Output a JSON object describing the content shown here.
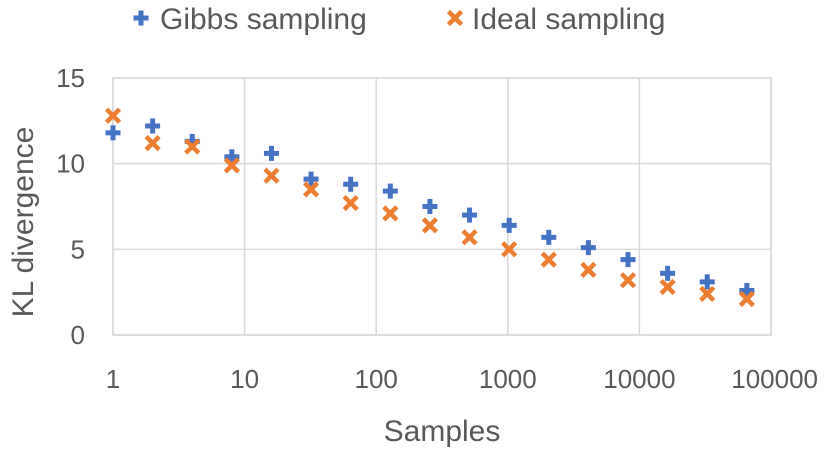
{
  "chart_data": {
    "type": "scatter",
    "xscale": "log",
    "xlim": [
      1,
      100000
    ],
    "ylim": [
      0,
      15
    ],
    "grid": true,
    "legend_position": "top",
    "xlabel": "Samples",
    "ylabel": "KL divergence",
    "xticks": [
      "1",
      "10",
      "100",
      "1000",
      "10000",
      "100000"
    ],
    "yticks": [
      "0",
      "5",
      "10",
      "15"
    ],
    "series": [
      {
        "name": "Gibbs sampling",
        "marker": "plus",
        "color": "#4472C4",
        "x": [
          1,
          2,
          4,
          8,
          16,
          32,
          64,
          128,
          256,
          512,
          1024,
          2048,
          4096,
          8192,
          16384,
          32768,
          65536
        ],
        "y": [
          11.8,
          12.2,
          11.3,
          10.4,
          10.6,
          9.1,
          8.8,
          8.4,
          7.5,
          7.0,
          6.4,
          5.7,
          5.1,
          4.4,
          3.6,
          3.1,
          2.6
        ]
      },
      {
        "name": "Ideal sampling",
        "marker": "x",
        "color": "#ED7D31",
        "x": [
          1,
          2,
          4,
          8,
          16,
          32,
          64,
          128,
          256,
          512,
          1024,
          2048,
          4096,
          8192,
          16384,
          32768,
          65536
        ],
        "y": [
          12.8,
          11.2,
          11.0,
          9.9,
          9.3,
          8.5,
          7.7,
          7.1,
          6.4,
          5.7,
          5.0,
          4.4,
          3.8,
          3.2,
          2.8,
          2.4,
          2.1
        ]
      }
    ]
  }
}
